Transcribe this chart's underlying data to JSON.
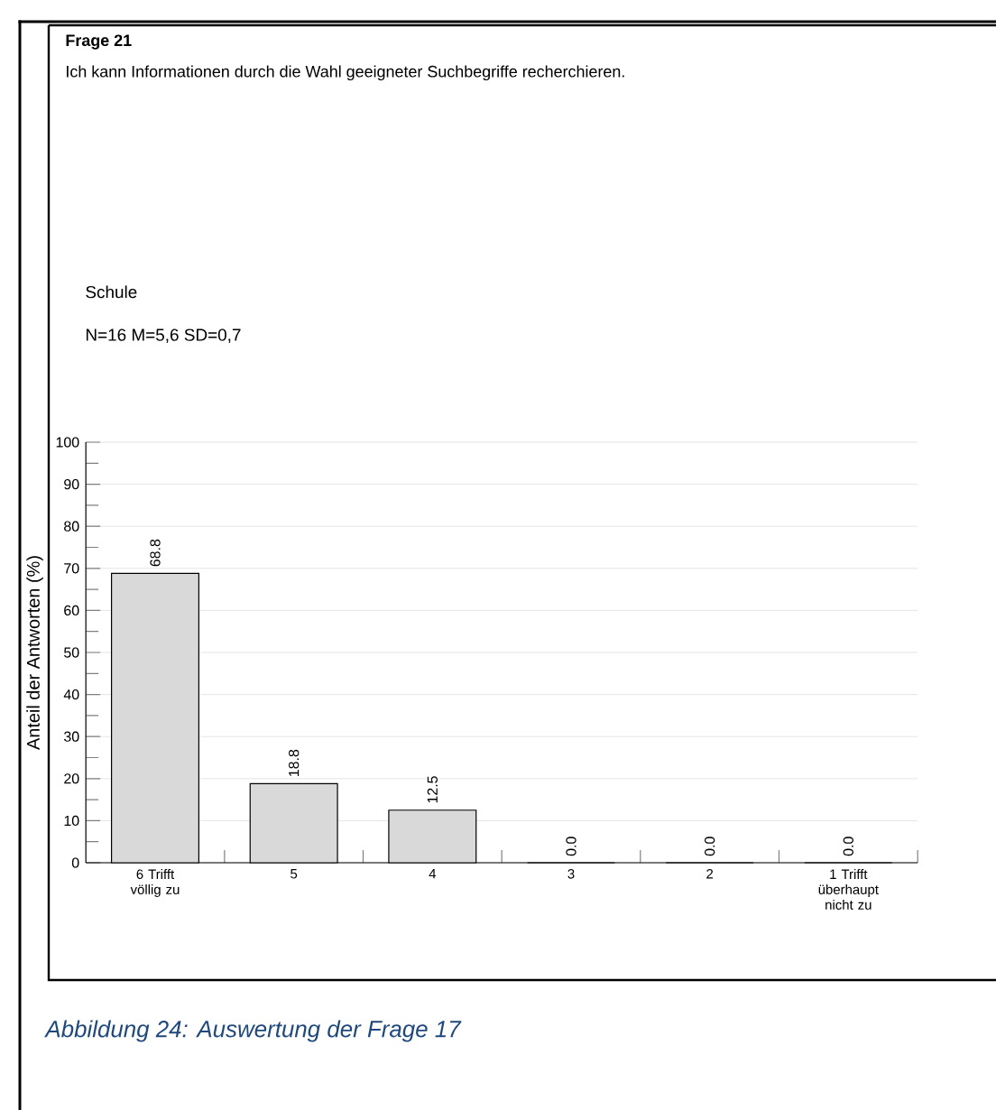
{
  "chart_data": {
    "type": "bar",
    "title": "Frage 21",
    "subtitle": "Ich kann Informationen durch die Wahl geeigneter Suchbegriffe recherchieren.",
    "ylabel": "Anteil der Antworten (%)",
    "categories": [
      "6 Trifft völlig zu",
      "5",
      "4",
      "3",
      "2",
      "1 Trifft überhaupt nicht zu"
    ],
    "values": [
      68.8,
      18.8,
      12.5,
      0.0,
      0.0,
      0.0
    ],
    "color": "#d9d9d9",
    "ylim": [
      0,
      100
    ],
    "yticks": [
      0,
      10,
      20,
      30,
      40,
      50,
      60,
      70,
      80,
      90,
      100
    ],
    "value_labels": [
      "68.8",
      "18.8",
      "12.5",
      "0.0",
      "0.0",
      "0.0"
    ],
    "grid": "y",
    "data_labels": true,
    "annotations": [
      "Schule",
      "N=16 M=5,6 SD=0,7",
      "Abbildung 24: Auswertung der Frage 17"
    ]
  }
}
